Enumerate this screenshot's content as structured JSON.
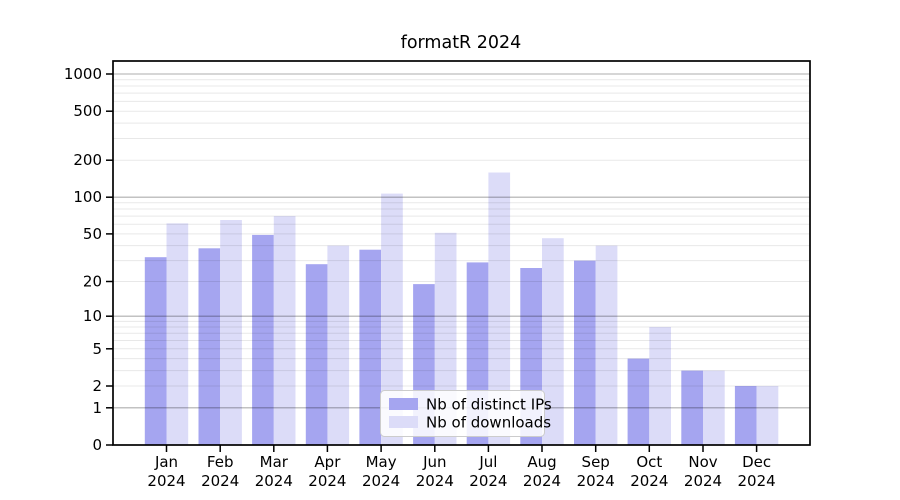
{
  "title": "formatR 2024",
  "chart_data": {
    "type": "bar",
    "title": "formatR 2024",
    "months": [
      "Jan",
      "Feb",
      "Mar",
      "Apr",
      "May",
      "Jun",
      "Jul",
      "Aug",
      "Sep",
      "Oct",
      "Nov",
      "Dec"
    ],
    "year_label": "2024",
    "categories": [
      "Jan 2024",
      "Feb 2024",
      "Mar 2024",
      "Apr 2024",
      "May 2024",
      "Jun 2024",
      "Jul 2024",
      "Aug 2024",
      "Sep 2024",
      "Oct 2024",
      "Nov 2024",
      "Dec 2024"
    ],
    "series": [
      {
        "name": "Nb of distinct IPs",
        "color": "#a5a5f0",
        "values": [
          32,
          38,
          49,
          28,
          37,
          19,
          29,
          26,
          30,
          4,
          3,
          2
        ]
      },
      {
        "name": "Nb of downloads",
        "color": "#dcdcf8",
        "values": [
          61,
          65,
          70,
          40,
          107,
          51,
          159,
          46,
          40,
          8,
          3,
          2
        ]
      }
    ],
    "y_ticks": [
      0,
      1,
      2,
      5,
      10,
      20,
      50,
      100,
      200,
      500,
      1000
    ],
    "y_scale": "log10(value+1)",
    "ylim": [
      0,
      1000
    ],
    "grid": true,
    "legend_position": "inside-bottom-center",
    "colors": {
      "major_gridline": "rgba(0,0,0,0.32)",
      "minor_gridline": "rgba(0,0,0,0.09)",
      "axis": "#000000",
      "legend_border": "#cccccc",
      "legend_background": "rgba(255,255,255,0.85)"
    }
  }
}
